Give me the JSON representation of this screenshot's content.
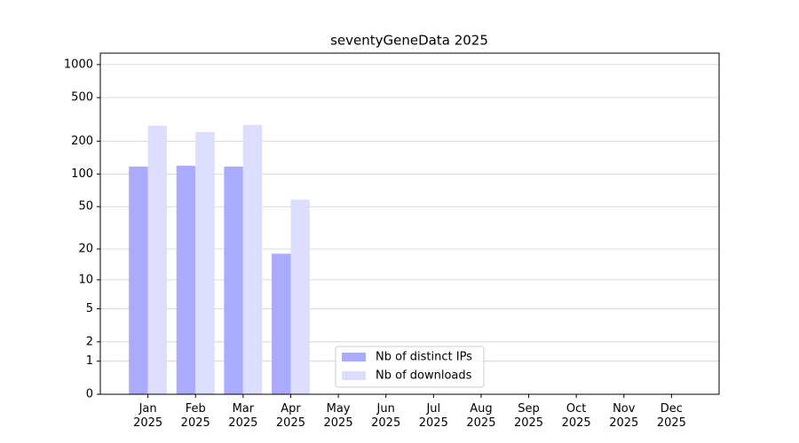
{
  "chart_data": {
    "type": "bar",
    "title": "seventyGeneData 2025",
    "categories": [
      "Jan\n2025",
      "Feb\n2025",
      "Mar\n2025",
      "Apr\n2025",
      "May\n2025",
      "Jun\n2025",
      "Jul\n2025",
      "Aug\n2025",
      "Sep\n2025",
      "Oct\n2025",
      "Nov\n2025",
      "Dec\n2025"
    ],
    "series": [
      {
        "name": "Nb of distinct IPs",
        "color": "#aaaaff",
        "values": [
          117,
          119,
          117,
          18,
          0,
          0,
          0,
          0,
          0,
          0,
          0,
          0
        ]
      },
      {
        "name": "Nb of downloads",
        "color": "#ddddff",
        "values": [
          277,
          243,
          282,
          58,
          0,
          0,
          0,
          0,
          0,
          0,
          0,
          0
        ]
      }
    ],
    "yscale": "log1p",
    "ylim": [
      0,
      1270
    ],
    "yticks": [
      0,
      1,
      2,
      5,
      10,
      20,
      50,
      100,
      200,
      500,
      1000
    ],
    "grid": true,
    "legend": "lower center"
  }
}
